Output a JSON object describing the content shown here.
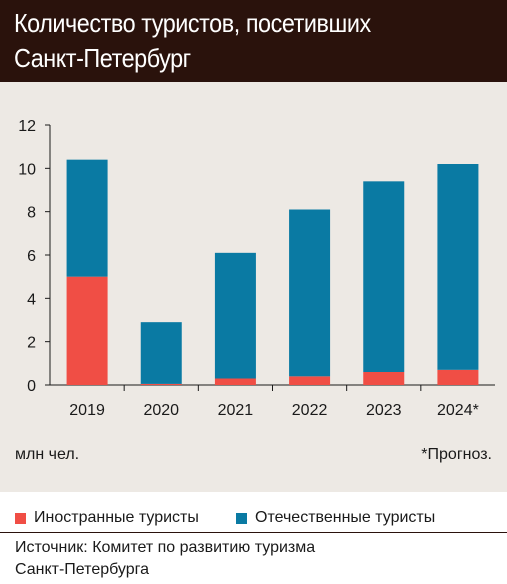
{
  "header": {
    "title_line1": "Количество туристов, посетивших",
    "title_line2": "Санкт-Петербург"
  },
  "chart_data": {
    "type": "bar",
    "stacked": true,
    "categories": [
      "2019",
      "2020",
      "2021",
      "2022",
      "2023",
      "2024*"
    ],
    "series": [
      {
        "name": "Иностранные туристы",
        "color": "#f04e45",
        "values": [
          5.0,
          0.05,
          0.3,
          0.4,
          0.6,
          0.7
        ]
      },
      {
        "name": "Отечественные туристы",
        "color": "#0a7aa3",
        "values": [
          5.4,
          2.85,
          5.8,
          7.7,
          8.8,
          9.5
        ]
      }
    ],
    "yticks": [
      0,
      2,
      4,
      6,
      8,
      10,
      12
    ],
    "ylim": [
      0,
      12
    ],
    "grid": false,
    "legend_position": "bottom",
    "unit": "млн чел.",
    "note": "*Прогноз."
  },
  "source": {
    "line1": "Источник: Комитет по развитию туризма",
    "line2": "Санкт-Петербурга"
  }
}
